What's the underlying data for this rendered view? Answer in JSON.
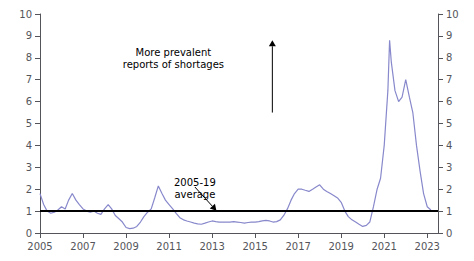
{
  "chart_data": {
    "type": "line",
    "x": [
      2005,
      2005.17,
      2005.33,
      2005.5,
      2005.67,
      2005.83,
      2006,
      2006.17,
      2006.33,
      2006.5,
      2006.67,
      2006.83,
      2007,
      2007.17,
      2007.33,
      2007.5,
      2007.67,
      2007.83,
      2008,
      2008.17,
      2008.33,
      2008.5,
      2008.67,
      2008.83,
      2009,
      2009.17,
      2009.33,
      2009.5,
      2009.67,
      2009.83,
      2010,
      2010.17,
      2010.33,
      2010.5,
      2010.67,
      2010.83,
      2011,
      2011.17,
      2011.33,
      2011.5,
      2011.67,
      2011.83,
      2012,
      2012.17,
      2012.33,
      2012.5,
      2012.67,
      2012.83,
      2013,
      2013.17,
      2013.33,
      2013.5,
      2013.67,
      2013.83,
      2014,
      2014.17,
      2014.33,
      2014.5,
      2014.67,
      2014.83,
      2015,
      2015.17,
      2015.33,
      2015.5,
      2015.67,
      2015.83,
      2016,
      2016.17,
      2016.33,
      2016.5,
      2016.67,
      2016.83,
      2017,
      2017.17,
      2017.33,
      2017.5,
      2017.67,
      2017.83,
      2018,
      2018.17,
      2018.33,
      2018.5,
      2018.67,
      2018.83,
      2019,
      2019.17,
      2019.33,
      2019.5,
      2019.67,
      2019.83,
      2020,
      2020.17,
      2020.33,
      2020.5,
      2020.67,
      2020.83,
      2021,
      2021.17,
      2021.25,
      2021.33,
      2021.5,
      2021.67,
      2021.83,
      2022,
      2022.17,
      2022.33,
      2022.5,
      2022.67,
      2022.83,
      2023,
      2023.17
    ],
    "values": [
      1.8,
      1.3,
      1.0,
      0.9,
      0.95,
      1.05,
      1.2,
      1.1,
      1.5,
      1.8,
      1.5,
      1.3,
      1.1,
      1.0,
      0.95,
      1.0,
      0.9,
      0.85,
      1.1,
      1.3,
      1.1,
      0.8,
      0.65,
      0.5,
      0.25,
      0.2,
      0.22,
      0.3,
      0.5,
      0.75,
      0.95,
      1.1,
      1.6,
      2.15,
      1.8,
      1.5,
      1.3,
      1.1,
      0.9,
      0.7,
      0.6,
      0.55,
      0.5,
      0.45,
      0.42,
      0.4,
      0.45,
      0.5,
      0.55,
      0.52,
      0.5,
      0.5,
      0.5,
      0.5,
      0.52,
      0.5,
      0.48,
      0.45,
      0.48,
      0.5,
      0.5,
      0.52,
      0.55,
      0.58,
      0.55,
      0.5,
      0.52,
      0.6,
      0.8,
      1.1,
      1.5,
      1.8,
      2.0,
      2.0,
      1.95,
      1.9,
      2.0,
      2.1,
      2.2,
      2.0,
      1.9,
      1.8,
      1.7,
      1.6,
      1.4,
      1.0,
      0.75,
      0.6,
      0.5,
      0.4,
      0.3,
      0.35,
      0.5,
      1.2,
      2.0,
      2.5,
      4.0,
      6.5,
      8.8,
      7.8,
      6.5,
      6.0,
      6.2,
      7.0,
      6.2,
      5.5,
      4.0,
      2.8,
      1.8,
      1.2,
      1.05
    ],
    "color": "#8888cc",
    "xlim": [
      2005,
      2023.5
    ],
    "xticks": [
      2005,
      2007,
      2009,
      2011,
      2013,
      2015,
      2017,
      2019,
      2021,
      2023
    ],
    "ylim": [
      0,
      10
    ],
    "yticks": [
      0,
      1,
      2,
      3,
      4,
      5,
      6,
      7,
      8,
      9,
      10
    ],
    "y2lim": [
      0,
      10
    ],
    "y2ticks": [
      0,
      1,
      2,
      3,
      4,
      5,
      6,
      7,
      8,
      9,
      10
    ],
    "grid": false,
    "reference_line": {
      "y": 1,
      "color": "#000000"
    },
    "annotations": [
      {
        "text": "More prevalent\nreports of shortages",
        "x": 2011.2,
        "y": 8.5,
        "arrow": {
          "from": [
            2015.8,
            5.5
          ],
          "to": [
            2015.8,
            8.8
          ]
        }
      },
      {
        "text": "2005-19\naverage",
        "x": 2012.2,
        "y": 2.6,
        "arrow": {
          "from": [
            2012.2,
            2.1
          ],
          "to": [
            2013.2,
            1.02
          ]
        }
      }
    ]
  }
}
